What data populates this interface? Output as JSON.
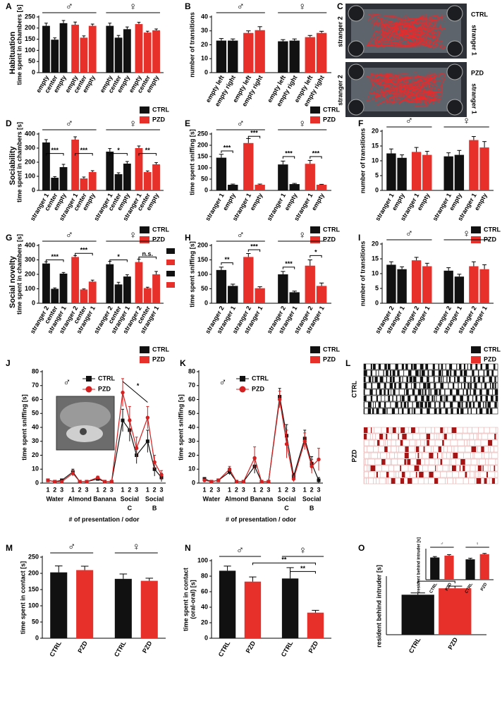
{
  "figure": {
    "row_labels": [
      "Habituation",
      "Sociability",
      "Social novelty"
    ]
  },
  "chart_data": [
    {
      "type": "bar",
      "label": "A",
      "ylabel": "time spent in chambers [s]",
      "sexes": [
        "♂",
        "♀"
      ],
      "categories": [
        "empty",
        "center",
        "empty",
        "empty",
        "center",
        "empty",
        "empty",
        "center",
        "empty",
        "empty",
        "center",
        "empty"
      ],
      "values": [
        210,
        148,
        222,
        215,
        157,
        210,
        210,
        157,
        195,
        218,
        180,
        190
      ],
      "errors": [
        12,
        8,
        12,
        12,
        8,
        8,
        12,
        10,
        10,
        8,
        6,
        6
      ],
      "colors": [
        "#111111",
        "#111111",
        "#111111",
        "#e8302a",
        "#e8302a",
        "#e8302a",
        "#111111",
        "#111111",
        "#111111",
        "#e8302a",
        "#e8302a",
        "#e8302a"
      ],
      "ylim": [
        0,
        250
      ],
      "yticks": [
        0,
        50,
        100,
        150,
        200,
        250
      ],
      "legend": [
        {
          "name": "CTRL",
          "color": "#111111"
        },
        {
          "name": "PZD",
          "color": "#e8302a"
        }
      ]
    },
    {
      "type": "bar",
      "label": "B",
      "ylabel": "number of transitions",
      "sexes": [
        "♂",
        "♀"
      ],
      "categories": [
        "empty left",
        "empty right",
        "empty left",
        "empty right",
        "empty left",
        "empty right",
        "empty left",
        "empty right"
      ],
      "values": [
        23,
        23,
        28.5,
        30.5,
        22.5,
        23,
        25.5,
        28.5
      ],
      "errors": [
        1.5,
        1.2,
        1.5,
        2.5,
        1.2,
        1.2,
        1.2,
        1.2
      ],
      "colors": [
        "#111111",
        "#111111",
        "#e8302a",
        "#e8302a",
        "#111111",
        "#111111",
        "#e8302a",
        "#e8302a"
      ],
      "ylim": [
        0,
        40
      ],
      "yticks": [
        0,
        10,
        20,
        30,
        40
      ],
      "legend": [
        {
          "name": "CTRL",
          "color": "#111111"
        },
        {
          "name": "PZD",
          "color": "#e8302a"
        }
      ]
    },
    {
      "type": "image",
      "label": "C",
      "rows": [
        "CTRL",
        "PZD"
      ],
      "stranger_labels": [
        "stranger 2",
        "stranger 1"
      ]
    },
    {
      "type": "bar",
      "label": "D",
      "ylabel": "time spent in chambers [s]",
      "sexes": [
        "♂",
        "♀"
      ],
      "categories": [
        "stranger 1",
        "center",
        "empty",
        "stranger 1",
        "center",
        "empty",
        "stranger 1",
        "center",
        "empty",
        "stranger 1",
        "center",
        "empty"
      ],
      "values": [
        340,
        90,
        165,
        360,
        85,
        130,
        275,
        115,
        190,
        300,
        130,
        185
      ],
      "errors": [
        20,
        8,
        20,
        20,
        10,
        10,
        22,
        10,
        15,
        15,
        8,
        12
      ],
      "colors": [
        "#111111",
        "#111111",
        "#111111",
        "#e8302a",
        "#e8302a",
        "#e8302a",
        "#111111",
        "#111111",
        "#111111",
        "#e8302a",
        "#e8302a",
        "#e8302a"
      ],
      "ylim": [
        0,
        400
      ],
      "yticks": [
        0,
        100,
        200,
        300,
        400
      ],
      "annotations": [
        "***",
        "***",
        "*",
        "**"
      ],
      "legend": [
        {
          "name": "CTRL",
          "color": "#111111"
        },
        {
          "name": "PZD",
          "color": "#e8302a"
        }
      ]
    },
    {
      "type": "bar",
      "label": "E",
      "ylabel": "time spent sniffing [s]",
      "sexes": [
        "♂",
        "♀"
      ],
      "categories": [
        "stranger 1",
        "empty",
        "stranger 1",
        "empty",
        "stranger 1",
        "empty",
        "stranger 1",
        "empty"
      ],
      "values": [
        145,
        25,
        210,
        25,
        115,
        28,
        118,
        25
      ],
      "errors": [
        15,
        3,
        20,
        3,
        15,
        3,
        15,
        2
      ],
      "colors": [
        "#111111",
        "#111111",
        "#e8302a",
        "#e8302a",
        "#111111",
        "#111111",
        "#e8302a",
        "#e8302a"
      ],
      "ylim": [
        0,
        250
      ],
      "yticks": [
        0,
        50,
        100,
        150,
        200,
        250
      ],
      "annotations": [
        "***",
        "***",
        "***",
        "***"
      ],
      "legend": [
        {
          "name": "CTRL",
          "color": "#111111"
        },
        {
          "name": "PZD",
          "color": "#e8302a"
        }
      ]
    },
    {
      "type": "bar",
      "label": "F",
      "ylabel": "number of transitions",
      "sexes": [
        "♂",
        "♀"
      ],
      "categories": [
        "stranger 1",
        "empty",
        "stranger 1",
        "empty",
        "stranger 1",
        "empty",
        "stranger 1",
        "empty"
      ],
      "values": [
        12.5,
        11,
        13,
        12,
        11.5,
        12,
        17,
        14.5
      ],
      "errors": [
        1.5,
        1,
        1.5,
        1.2,
        1.2,
        1.5,
        1.2,
        2
      ],
      "colors": [
        "#111111",
        "#111111",
        "#e8302a",
        "#e8302a",
        "#111111",
        "#111111",
        "#e8302a",
        "#e8302a"
      ],
      "ylim": [
        0,
        20
      ],
      "yticks": [
        0,
        5,
        10,
        15,
        20
      ],
      "legend": [
        {
          "name": "CTRL",
          "color": "#111111"
        },
        {
          "name": "PZD",
          "color": "#e8302a"
        }
      ]
    },
    {
      "type": "bar",
      "label": "G",
      "ylabel": "time spent in chambers [s]",
      "sexes": [
        "♂",
        "♀"
      ],
      "categories": [
        "stranger 2",
        "center",
        "stranger 1",
        "stranger 2",
        "center",
        "stranger 1",
        "stranger 2",
        "center",
        "stranger 1",
        "stranger 2",
        "center",
        "stranger 1"
      ],
      "values": [
        275,
        100,
        205,
        320,
        95,
        150,
        270,
        130,
        185,
        285,
        105,
        200
      ],
      "errors": [
        12,
        6,
        8,
        10,
        4,
        10,
        20,
        15,
        12,
        20,
        6,
        20
      ],
      "colors": [
        "#111111",
        "#111111",
        "#111111",
        "#e8302a",
        "#e8302a",
        "#e8302a",
        "#111111",
        "#111111",
        "#111111",
        "#e8302a",
        "#e8302a",
        "#e8302a"
      ],
      "ylim": [
        0,
        400
      ],
      "yticks": [
        0,
        100,
        200,
        300,
        400
      ],
      "annotations": [
        "***",
        "***",
        "*",
        "n.s."
      ],
      "legend": [
        {
          "name": "CTRL",
          "color": "#111111"
        },
        {
          "name": "PZD",
          "color": "#e8302a"
        }
      ]
    },
    {
      "type": "bar",
      "label": "H",
      "ylabel": "time spent sniffing [s]",
      "sexes": [
        "♂",
        "♀"
      ],
      "categories": [
        "stranger 2",
        "stranger 1",
        "stranger 2",
        "stranger 1",
        "stranger 2",
        "stranger 1",
        "stranger 2",
        "stranger 1"
      ],
      "values": [
        115,
        60,
        160,
        52,
        100,
        38,
        130,
        60
      ],
      "errors": [
        10,
        6,
        12,
        5,
        10,
        4,
        20,
        10
      ],
      "colors": [
        "#111111",
        "#111111",
        "#e8302a",
        "#e8302a",
        "#111111",
        "#111111",
        "#e8302a",
        "#e8302a"
      ],
      "ylim": [
        0,
        200
      ],
      "yticks": [
        0,
        50,
        100,
        150,
        200
      ],
      "annotations": [
        "**",
        "***",
        "***",
        "*"
      ],
      "legend": [
        {
          "name": "CTRL",
          "color": "#111111"
        },
        {
          "name": "PZD",
          "color": "#e8302a"
        }
      ]
    },
    {
      "type": "bar",
      "label": "I",
      "ylabel": "number of transitions",
      "sexes": [
        "♂",
        "♀"
      ],
      "categories": [
        "stranger 2",
        "stranger 1",
        "stranger 2",
        "stranger 1",
        "stranger 2",
        "stranger 1",
        "stranger 2",
        "stranger 1"
      ],
      "values": [
        13,
        11.5,
        14.5,
        12.5,
        11,
        9,
        12.5,
        11.5
      ],
      "errors": [
        1,
        0.8,
        1,
        1,
        1,
        0.8,
        1.5,
        1.5
      ],
      "colors": [
        "#111111",
        "#111111",
        "#e8302a",
        "#e8302a",
        "#111111",
        "#111111",
        "#e8302a",
        "#e8302a"
      ],
      "ylim": [
        0,
        20
      ],
      "yticks": [
        0,
        5,
        10,
        15,
        20
      ],
      "legend": [
        {
          "name": "CTRL",
          "color": "#111111"
        },
        {
          "name": "PZD",
          "color": "#e8302a"
        }
      ]
    },
    {
      "type": "line",
      "label": "J",
      "ylabel": "time spent sniffing [s]",
      "xlabel": "# of presentation / odor",
      "sex": "♂",
      "categories": [
        "1",
        "2",
        "3",
        "1",
        "2",
        "3",
        "1",
        "2",
        "3",
        "1",
        "2",
        "3",
        "1",
        "2",
        "3"
      ],
      "groups": [
        "Water",
        "Almond",
        "Banana",
        "Social",
        "Social"
      ],
      "subgroups": [
        "C",
        "B"
      ],
      "series": [
        {
          "name": "CTRL",
          "color": "#111111",
          "values": [
            2,
            1,
            2,
            8,
            1,
            1,
            3,
            1,
            1,
            45,
            38,
            20,
            30,
            10,
            4
          ],
          "errors": [
            1,
            1,
            1,
            2,
            1,
            1,
            1,
            1,
            1,
            8,
            8,
            6,
            8,
            5,
            3
          ]
        },
        {
          "name": "PZD",
          "color": "#d42020",
          "values": [
            2,
            1,
            1,
            7,
            1,
            1,
            4,
            1,
            1,
            65,
            45,
            25,
            47,
            15,
            6
          ],
          "errors": [
            1,
            1,
            1,
            2,
            1,
            1,
            1,
            1,
            1,
            10,
            10,
            8,
            8,
            5,
            3
          ]
        }
      ],
      "ylim": [
        0,
        80
      ],
      "yticks": [
        0,
        10,
        20,
        30,
        40,
        50,
        60,
        70,
        80
      ],
      "annotations": [
        "*"
      ]
    },
    {
      "type": "line",
      "label": "K",
      "ylabel": "time spent sniffing [s]",
      "xlabel": "# of presentation / odor",
      "sex": "♂",
      "categories": [
        "1",
        "2",
        "3",
        "1",
        "2",
        "3",
        "1",
        "2",
        "3",
        "1",
        "2",
        "3",
        "1",
        "2",
        "3"
      ],
      "groups": [
        "Water",
        "Almond",
        "Banana",
        "Social",
        "Social"
      ],
      "subgroups": [
        "C",
        "B"
      ],
      "series": [
        {
          "name": "CTRL",
          "color": "#111111",
          "values": [
            3,
            1,
            2,
            8,
            1,
            1,
            12,
            1,
            1,
            62,
            34,
            5,
            32,
            14,
            2
          ],
          "errors": [
            1,
            1,
            1,
            2,
            1,
            1,
            5,
            1,
            1,
            6,
            8,
            2,
            6,
            5,
            2
          ]
        },
        {
          "name": "PZD",
          "color": "#d42020",
          "values": [
            2,
            1,
            2,
            10,
            1,
            1,
            18,
            1,
            1,
            60,
            28,
            3,
            30,
            12,
            17
          ],
          "errors": [
            1,
            1,
            1,
            2,
            1,
            1,
            8,
            1,
            1,
            6,
            10,
            2,
            6,
            5,
            8
          ]
        }
      ],
      "ylim": [
        0,
        80
      ],
      "yticks": [
        0,
        10,
        20,
        30,
        40,
        50,
        60,
        70,
        80
      ]
    },
    {
      "type": "raster",
      "label": "L",
      "rows": [
        "CTRL",
        "PZD"
      ]
    },
    {
      "type": "bar",
      "label": "M",
      "ylabel": "time spent in contact [s]",
      "sexes": [
        "♂",
        "♀"
      ],
      "categories": [
        "CTRL",
        "PZD",
        "CTRL",
        "PZD"
      ],
      "values": [
        203,
        210,
        183,
        177
      ],
      "errors": [
        20,
        12,
        15,
        8
      ],
      "colors": [
        "#111111",
        "#e8302a",
        "#111111",
        "#e8302a"
      ],
      "ylim": [
        0,
        250
      ],
      "yticks": [
        0,
        50,
        100,
        150,
        200,
        250
      ]
    },
    {
      "type": "bar",
      "label": "N",
      "ylabel": [
        "time spent in contact",
        "(oral-oral) [s]"
      ],
      "sexes": [
        "♂",
        "♀"
      ],
      "categories": [
        "CTRL",
        "PZD",
        "CTRL",
        "PZD"
      ],
      "values": [
        87,
        73,
        77,
        33
      ],
      "errors": [
        6,
        6,
        14,
        3
      ],
      "colors": [
        "#111111",
        "#e8302a",
        "#111111",
        "#e8302a"
      ],
      "ylim": [
        0,
        100
      ],
      "yticks": [
        0,
        20,
        40,
        60,
        80,
        100
      ],
      "annotations": [
        "**",
        "**"
      ]
    },
    {
      "type": "bar",
      "label": "O",
      "ylabel": "resident behind intruder [s]",
      "categories": [
        "CTRL",
        "PZD"
      ],
      "values": [
        112,
        130
      ],
      "errors": [
        5,
        6
      ],
      "colors": [
        "#111111",
        "#e8302a"
      ],
      "ylim": [
        0,
        160
      ],
      "annotations": [
        "*"
      ],
      "inset": {
        "type": "bar",
        "ylabel": "resident behind intruder [s]",
        "sexes": [
          "♂",
          "♀"
        ],
        "categories": [
          "CTRL",
          "PZD",
          "CTRL",
          "PZD"
        ],
        "values": [
          120,
          130,
          110,
          138
        ],
        "errors": [
          5,
          5,
          6,
          4
        ],
        "colors": [
          "#111111",
          "#e8302a",
          "#111111",
          "#e8302a"
        ],
        "ylim": [
          0,
          160
        ]
      }
    }
  ]
}
